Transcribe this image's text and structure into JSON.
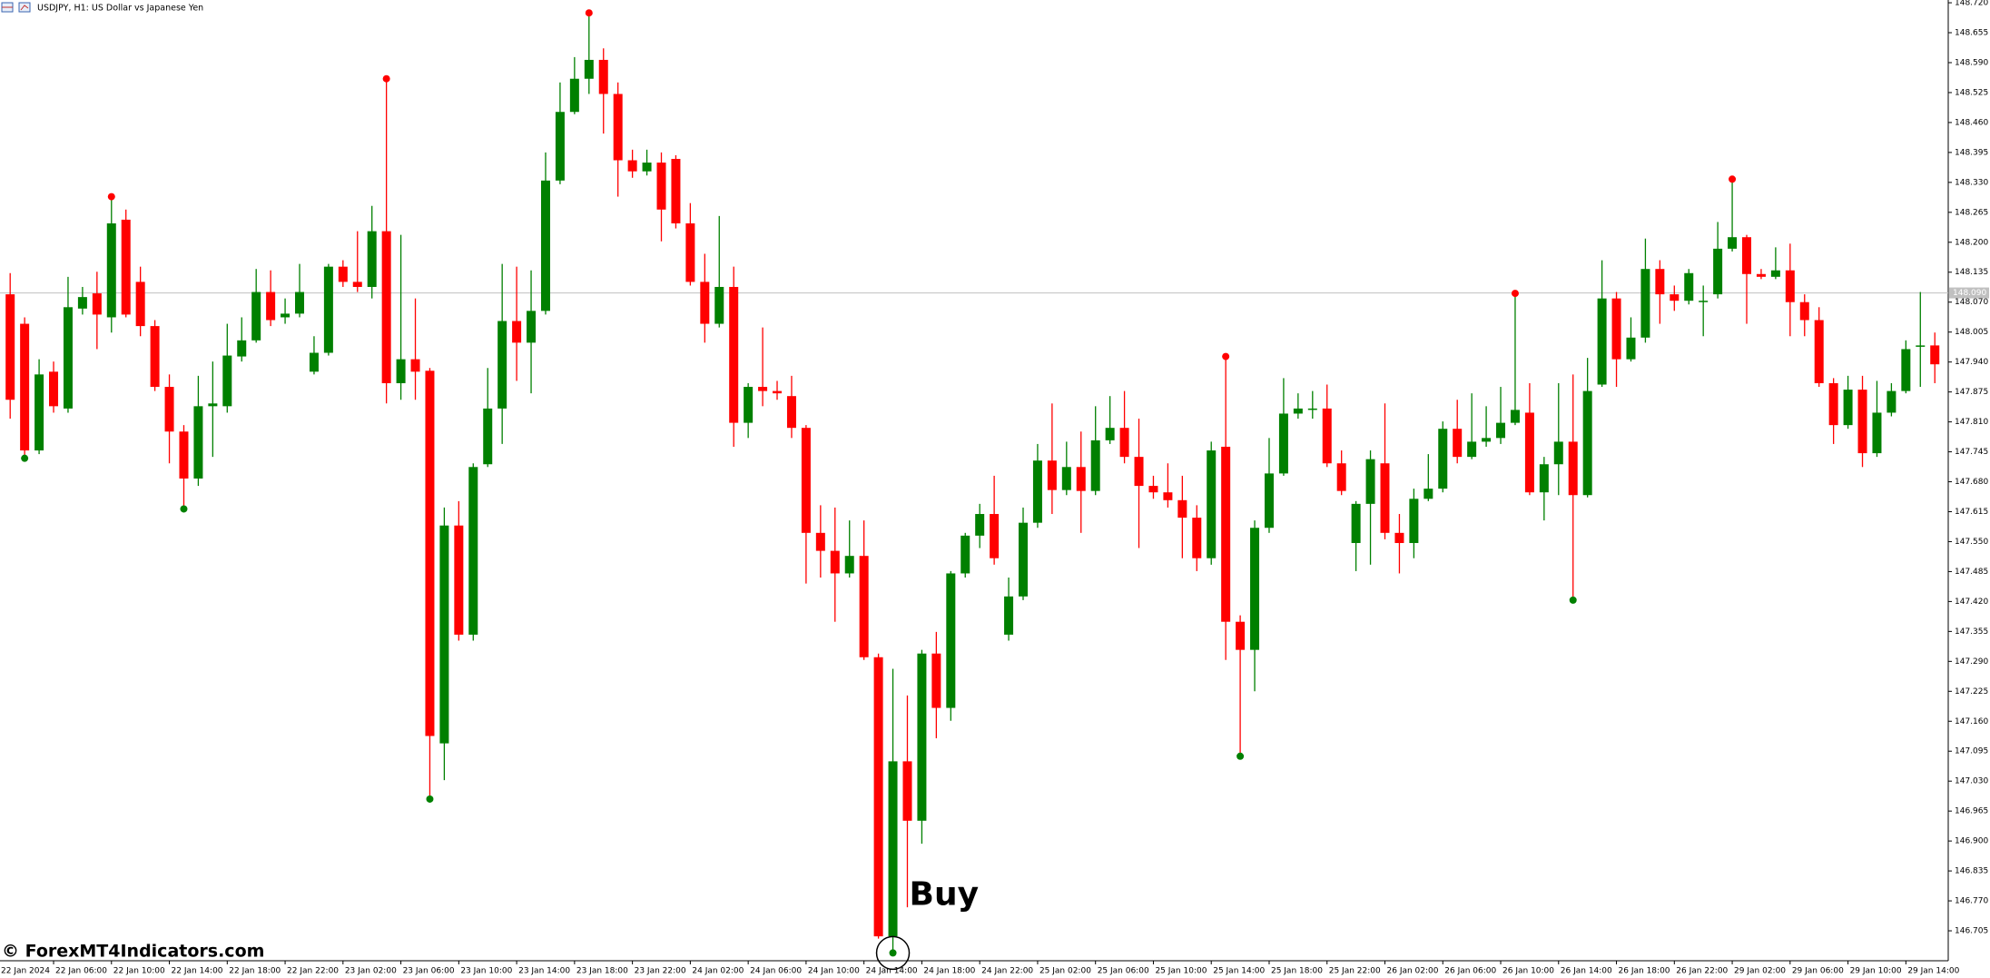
{
  "chart_data": {
    "type": "candlestick",
    "title": "USDJPY, H1:  US Dollar vs Japanese Yen",
    "watermark": "© ForexMT4Indicators.com",
    "up_color": "#008000",
    "down_color": "#ff0000",
    "ylim": [
      146.64,
      148.726
    ],
    "yticks": [
      {
        "value": 148.72,
        "label": "148.720"
      },
      148.655,
      {
        "value": 148.59,
        "label": "148.590"
      },
      148.525,
      {
        "value": 148.46,
        "label": "148.460"
      },
      148.395,
      {
        "value": 148.33,
        "label": "148.330"
      },
      148.265,
      {
        "value": 148.2,
        "label": "148.200"
      },
      148.135,
      {
        "value": 148.07,
        "label": "148.070"
      },
      148.005,
      {
        "value": 147.94,
        "label": "147.940"
      },
      147.875,
      {
        "value": 147.81,
        "label": "147.810"
      },
      147.745,
      {
        "value": 147.68,
        "label": "147.680"
      },
      147.615,
      {
        "value": 147.55,
        "label": "147.550"
      },
      147.485,
      {
        "value": 147.42,
        "label": "147.420"
      },
      147.355,
      {
        "value": 147.29,
        "label": "147.290"
      },
      147.225,
      {
        "value": 147.16,
        "label": "147.160"
      },
      147.095,
      {
        "value": 147.03,
        "label": "147.030"
      },
      146.965,
      {
        "value": 146.9,
        "label": "146.900"
      },
      146.835,
      {
        "value": 146.77,
        "label": "146.770"
      },
      146.705
    ],
    "price_line": {
      "value": 148.09,
      "label": "148.090"
    },
    "xticks": [
      {
        "value": -1,
        "label": "22 Jan 2024"
      },
      {
        "value": 3,
        "label": "22 Jan 06:00"
      },
      {
        "value": 7,
        "label": "22 Jan 10:00"
      },
      {
        "value": 11,
        "label": "22 Jan 14:00"
      },
      {
        "value": 15,
        "label": "22 Jan 18:00"
      },
      {
        "value": 19,
        "label": "22 Jan 22:00"
      },
      {
        "value": 23,
        "label": "23 Jan 02:00"
      },
      {
        "value": 27,
        "label": "23 Jan 06:00"
      },
      {
        "value": 31,
        "label": "23 Jan 10:00"
      },
      {
        "value": 35,
        "label": "23 Jan 14:00"
      },
      {
        "value": 39,
        "label": "23 Jan 18:00"
      },
      {
        "value": 43,
        "label": "23 Jan 22:00"
      },
      {
        "value": 47,
        "label": "24 Jan 02:00"
      },
      {
        "value": 51,
        "label": "24 Jan 06:00"
      },
      {
        "value": 55,
        "label": "24 Jan 10:00"
      },
      {
        "value": 59,
        "label": "24 Jan 14:00"
      },
      {
        "value": 63,
        "label": "24 Jan 18:00"
      },
      {
        "value": 67,
        "label": "24 Jan 22:00"
      },
      {
        "value": 71,
        "label": "25 Jan 02:00"
      },
      {
        "value": 75,
        "label": "25 Jan 06:00"
      },
      {
        "value": 79,
        "label": "25 Jan 10:00"
      },
      {
        "value": 83,
        "label": "25 Jan 14:00"
      },
      {
        "value": 87,
        "label": "25 Jan 18:00"
      },
      {
        "value": 91,
        "label": "25 Jan 22:00"
      },
      {
        "value": 95,
        "label": "26 Jan 02:00"
      },
      {
        "value": 99,
        "label": "26 Jan 06:00"
      },
      {
        "value": 103,
        "label": "26 Jan 10:00"
      },
      {
        "value": 107,
        "label": "26 Jan 14:00"
      },
      {
        "value": 111,
        "label": "26 Jan 18:00"
      },
      {
        "value": 115,
        "label": "26 Jan 22:00"
      },
      {
        "value": 119,
        "label": "29 Jan 02:00"
      },
      {
        "value": 123,
        "label": "29 Jan 06:00"
      },
      {
        "value": 127,
        "label": "29 Jan 10:00"
      },
      {
        "value": 131,
        "label": "29 Jan 14:00"
      }
    ],
    "open": [
      148.087,
      148.023,
      147.748,
      147.919,
      147.839,
      148.056,
      148.089,
      148.037,
      148.249,
      148.114,
      148.018,
      147.886,
      147.789,
      147.687,
      147.844,
      147.844,
      147.952,
      147.987,
      148.092,
      148.037,
      148.045,
      147.919,
      147.96,
      148.147,
      148.114,
      148.103,
      148.224,
      147.894,
      147.946,
      147.921,
      147.112,
      147.585,
      147.348,
      147.718,
      147.839,
      148.029,
      147.982,
      148.051,
      148.334,
      148.483,
      148.555,
      148.596,
      148.522,
      148.378,
      148.354,
      148.373,
      148.381,
      148.241,
      148.114,
      148.023,
      148.103,
      147.808,
      147.886,
      147.877,
      147.866,
      147.797,
      147.569,
      147.53,
      147.481,
      147.519,
      147.299,
      146.693,
      147.073,
      146.944,
      147.307,
      147.189,
      147.481,
      147.563,
      147.61,
      147.348,
      147.431,
      147.591,
      147.726,
      147.662,
      147.712,
      147.66,
      147.77,
      147.797,
      147.734,
      147.671,
      147.657,
      147.64,
      147.602,
      147.514,
      147.756,
      147.376,
      147.315,
      147.58,
      147.698,
      147.828,
      147.836,
      147.839,
      147.72,
      147.547,
      147.632,
      147.72,
      147.569,
      147.547,
      147.643,
      147.665,
      147.795,
      147.734,
      147.767,
      147.775,
      147.808,
      147.83,
      147.657,
      147.718,
      147.767,
      147.651,
      147.891,
      148.078,
      147.946,
      147.993,
      148.142,
      148.087,
      148.073,
      148.07,
      148.087,
      148.186,
      148.211,
      148.131,
      148.125,
      148.139,
      148.07,
      148.031,
      147.894,
      147.803,
      147.88,
      147.742,
      147.83,
      147.877,
      147.974,
      147.976
    ],
    "high": [
      148.133,
      148.037,
      147.946,
      147.941,
      148.125,
      148.103,
      148.136,
      148.299,
      148.271,
      148.147,
      148.031,
      147.913,
      147.803,
      147.91,
      147.941,
      148.023,
      148.037,
      148.142,
      148.139,
      148.078,
      148.153,
      147.996,
      148.153,
      148.161,
      148.224,
      148.279,
      148.555,
      148.216,
      148.078,
      147.927,
      147.624,
      147.638,
      147.72,
      147.927,
      148.153,
      148.147,
      148.139,
      148.395,
      148.547,
      148.602,
      148.698,
      148.621,
      148.547,
      148.401,
      148.401,
      148.395,
      148.389,
      148.285,
      148.175,
      148.257,
      148.147,
      147.894,
      148.015,
      147.899,
      147.91,
      147.803,
      147.629,
      147.624,
      147.596,
      147.596,
      147.307,
      147.274,
      147.216,
      147.315,
      147.354,
      147.486,
      147.569,
      147.632,
      147.693,
      147.472,
      147.624,
      147.762,
      147.85,
      147.767,
      147.789,
      147.844,
      147.866,
      147.877,
      147.817,
      147.693,
      147.72,
      147.693,
      147.629,
      147.767,
      147.952,
      147.39,
      147.596,
      147.775,
      147.905,
      147.872,
      147.877,
      147.891,
      147.748,
      147.638,
      147.748,
      147.85,
      147.61,
      147.665,
      147.74,
      147.811,
      147.858,
      147.872,
      147.844,
      147.886,
      148.089,
      147.894,
      147.734,
      147.894,
      147.913,
      147.949,
      148.161,
      148.092,
      148.037,
      148.208,
      148.161,
      148.106,
      148.142,
      148.106,
      148.244,
      148.337,
      148.216,
      148.142,
      148.189,
      148.197,
      148.087,
      148.059,
      147.905,
      147.91,
      147.91,
      147.899,
      147.894,
      147.987,
      148.092,
      148.004
    ],
    "low": [
      147.817,
      147.731,
      147.74,
      147.83,
      147.83,
      148.043,
      147.968,
      148.004,
      148.037,
      147.996,
      147.877,
      147.72,
      147.621,
      147.671,
      147.734,
      147.83,
      147.941,
      147.982,
      148.018,
      148.023,
      148.037,
      147.913,
      147.954,
      148.103,
      148.092,
      148.078,
      147.85,
      147.858,
      147.858,
      146.991,
      147.032,
      147.335,
      147.335,
      147.712,
      147.762,
      147.899,
      147.872,
      148.043,
      148.326,
      148.478,
      148.522,
      148.436,
      148.299,
      148.34,
      148.345,
      148.202,
      148.23,
      148.106,
      147.982,
      148.015,
      147.756,
      147.775,
      147.844,
      147.858,
      147.775,
      147.459,
      147.472,
      147.376,
      147.472,
      147.293,
      146.688,
      146.657,
      146.756,
      146.894,
      147.123,
      147.161,
      147.472,
      147.536,
      147.5,
      147.335,
      147.423,
      147.58,
      147.61,
      147.651,
      147.569,
      147.651,
      147.762,
      147.72,
      147.536,
      147.643,
      147.624,
      147.514,
      147.486,
      147.5,
      147.293,
      147.084,
      147.225,
      147.569,
      147.693,
      147.817,
      147.817,
      147.712,
      147.651,
      147.486,
      147.5,
      147.555,
      147.481,
      147.514,
      147.638,
      147.657,
      147.72,
      147.729,
      147.756,
      147.762,
      147.803,
      147.651,
      147.596,
      147.651,
      147.423,
      147.646,
      147.886,
      147.886,
      147.941,
      147.982,
      148.023,
      148.051,
      148.065,
      147.996,
      148.078,
      148.18,
      148.023,
      148.12,
      148.12,
      147.996,
      147.996,
      147.886,
      147.762,
      147.795,
      147.712,
      147.734,
      147.822,
      147.872,
      147.886,
      147.894
    ],
    "close": [
      147.858,
      147.748,
      147.913,
      147.844,
      148.059,
      148.081,
      148.043,
      148.241,
      148.043,
      148.018,
      147.886,
      147.789,
      147.687,
      147.844,
      147.85,
      147.954,
      147.987,
      148.092,
      148.031,
      148.045,
      148.092,
      147.96,
      148.147,
      148.114,
      148.103,
      148.224,
      147.894,
      147.946,
      147.919,
      147.128,
      147.585,
      147.348,
      147.712,
      147.839,
      148.029,
      147.982,
      148.051,
      148.334,
      148.483,
      148.555,
      148.596,
      148.522,
      148.378,
      148.354,
      148.373,
      148.271,
      148.241,
      148.114,
      148.023,
      148.103,
      147.808,
      147.886,
      147.877,
      147.872,
      147.797,
      147.569,
      147.53,
      147.481,
      147.519,
      147.299,
      146.693,
      147.073,
      146.944,
      147.307,
      147.189,
      147.481,
      147.563,
      147.61,
      147.514,
      147.431,
      147.591,
      147.726,
      147.662,
      147.712,
      147.66,
      147.77,
      147.797,
      147.734,
      147.671,
      147.657,
      147.64,
      147.602,
      147.514,
      147.748,
      147.376,
      147.315,
      147.58,
      147.698,
      147.828,
      147.839,
      147.839,
      147.72,
      147.66,
      147.632,
      147.729,
      147.569,
      147.547,
      147.643,
      147.665,
      147.795,
      147.734,
      147.767,
      147.775,
      147.808,
      147.836,
      147.657,
      147.718,
      147.767,
      147.651,
      147.877,
      148.078,
      147.946,
      147.993,
      148.142,
      148.087,
      148.073,
      148.133,
      148.073,
      148.186,
      148.211,
      148.131,
      148.125,
      148.139,
      148.07,
      148.031,
      147.894,
      147.803,
      147.88,
      147.742,
      147.83,
      147.877,
      147.968,
      147.976,
      147.935
    ],
    "sell_signals": [
      7,
      26,
      40,
      84,
      104,
      119
    ],
    "buy_signals": [
      1,
      12,
      29,
      61,
      85,
      108
    ],
    "annotations": [
      {
        "text": "Buy",
        "index": 61
      }
    ]
  }
}
